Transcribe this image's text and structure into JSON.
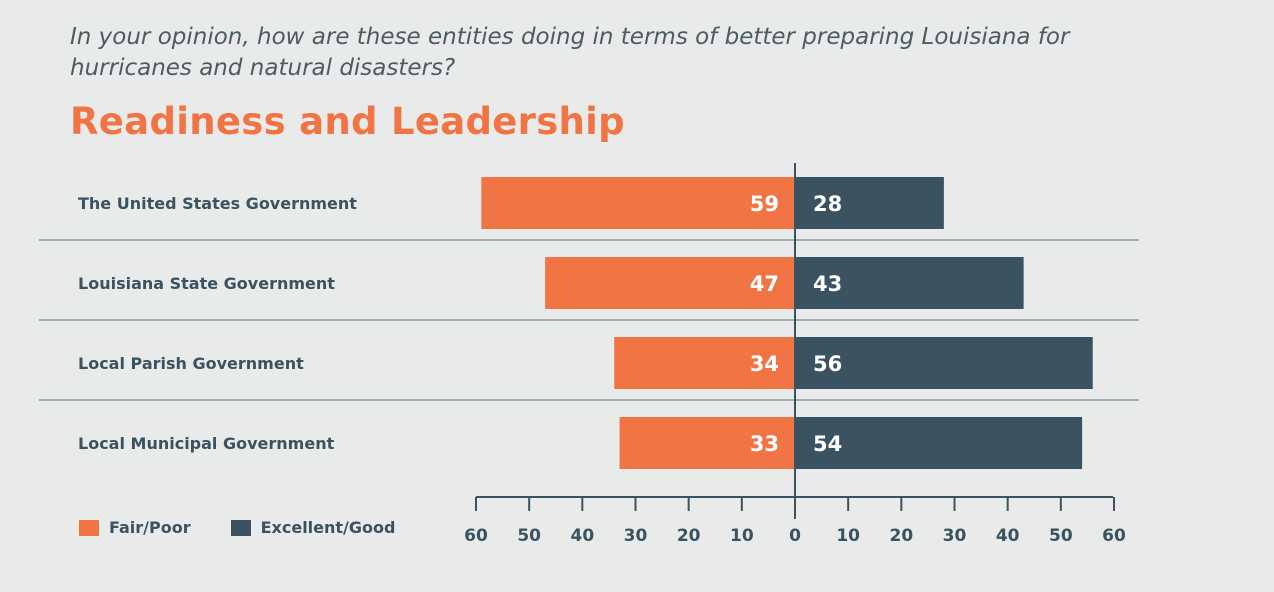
{
  "chart_data": {
    "type": "bar",
    "orientation": "horizontal-diverging",
    "title": "Readiness and Leadership",
    "subtitle": "In your opinion, how are these entities doing in terms of better preparing Louisiana for hurricanes and natural disasters?",
    "categories": [
      "The United States Government",
      "Louisiana State Government",
      "Local Parish Government",
      "Local Municipal Government"
    ],
    "series": [
      {
        "name": "Fair/Poor",
        "color": "#f07444",
        "values": [
          59,
          47,
          34,
          33
        ],
        "direction": "left"
      },
      {
        "name": "Excellent/Good",
        "color": "#3b5260",
        "values": [
          28,
          43,
          56,
          54
        ],
        "direction": "right"
      }
    ],
    "xlim": [
      -60,
      60
    ],
    "xticks": [
      "60",
      "50",
      "40",
      "30",
      "20",
      "10",
      "0",
      "10",
      "20",
      "30",
      "40",
      "50",
      "60"
    ],
    "legend_position": "bottom-left",
    "grid": false
  }
}
